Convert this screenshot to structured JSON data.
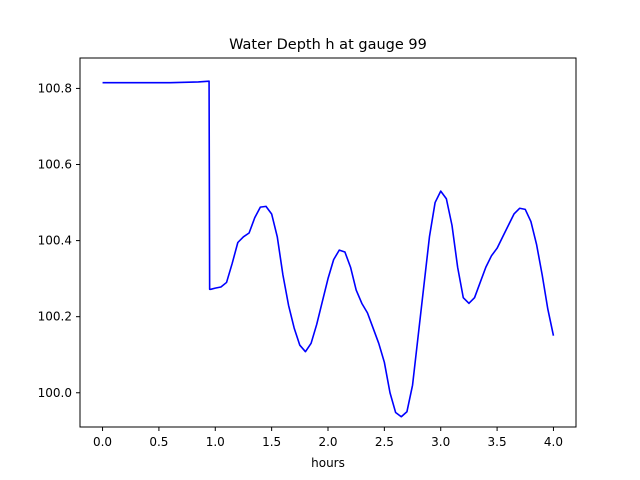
{
  "chart_data": {
    "type": "line",
    "title": "Water Depth h at gauge 99",
    "xlabel": "hours",
    "ylabel": "",
    "xlim": [
      -0.2,
      4.2
    ],
    "ylim": [
      99.91,
      100.88
    ],
    "xticks": [
      0.0,
      0.5,
      1.0,
      1.5,
      2.0,
      2.5,
      3.0,
      3.5,
      4.0
    ],
    "xtick_labels": [
      "0.0",
      "0.5",
      "1.0",
      "1.5",
      "2.0",
      "2.5",
      "3.0",
      "3.5",
      "4.0"
    ],
    "yticks": [
      100.0,
      100.2,
      100.4,
      100.6,
      100.8
    ],
    "ytick_labels": [
      "100.0",
      "100.2",
      "100.4",
      "100.6",
      "100.8"
    ],
    "grid": false,
    "legend": "none",
    "series": [
      {
        "color": "#0000ff",
        "x": [
          0.0,
          0.3,
          0.6,
          0.85,
          0.945,
          0.95,
          0.96,
          1.0,
          1.05,
          1.1,
          1.15,
          1.2,
          1.25,
          1.3,
          1.35,
          1.4,
          1.45,
          1.5,
          1.55,
          1.6,
          1.65,
          1.7,
          1.75,
          1.8,
          1.85,
          1.9,
          1.95,
          2.0,
          2.05,
          2.1,
          2.15,
          2.2,
          2.25,
          2.3,
          2.35,
          2.4,
          2.45,
          2.5,
          2.55,
          2.6,
          2.65,
          2.7,
          2.75,
          2.8,
          2.85,
          2.9,
          2.95,
          3.0,
          3.05,
          3.1,
          3.15,
          3.2,
          3.25,
          3.3,
          3.35,
          3.4,
          3.45,
          3.5,
          3.55,
          3.6,
          3.65,
          3.7,
          3.75,
          3.8,
          3.85,
          3.9,
          3.95,
          4.0
        ],
        "y": [
          100.815,
          100.815,
          100.815,
          100.817,
          100.819,
          100.272,
          100.272,
          100.275,
          100.278,
          100.29,
          100.34,
          100.395,
          100.41,
          100.42,
          100.46,
          100.488,
          100.49,
          100.47,
          100.41,
          100.31,
          100.23,
          100.17,
          100.125,
          100.108,
          100.13,
          100.18,
          100.24,
          100.3,
          100.35,
          100.375,
          100.37,
          100.33,
          100.27,
          100.235,
          100.21,
          100.17,
          100.13,
          100.08,
          100.0,
          99.948,
          99.937,
          99.95,
          100.02,
          100.15,
          100.28,
          100.41,
          100.5,
          100.53,
          100.51,
          100.44,
          100.33,
          100.25,
          100.235,
          100.25,
          100.29,
          100.33,
          100.36,
          100.38,
          100.41,
          100.44,
          100.47,
          100.485,
          100.482,
          100.45,
          100.39,
          100.31,
          100.22,
          100.15
        ]
      }
    ]
  }
}
